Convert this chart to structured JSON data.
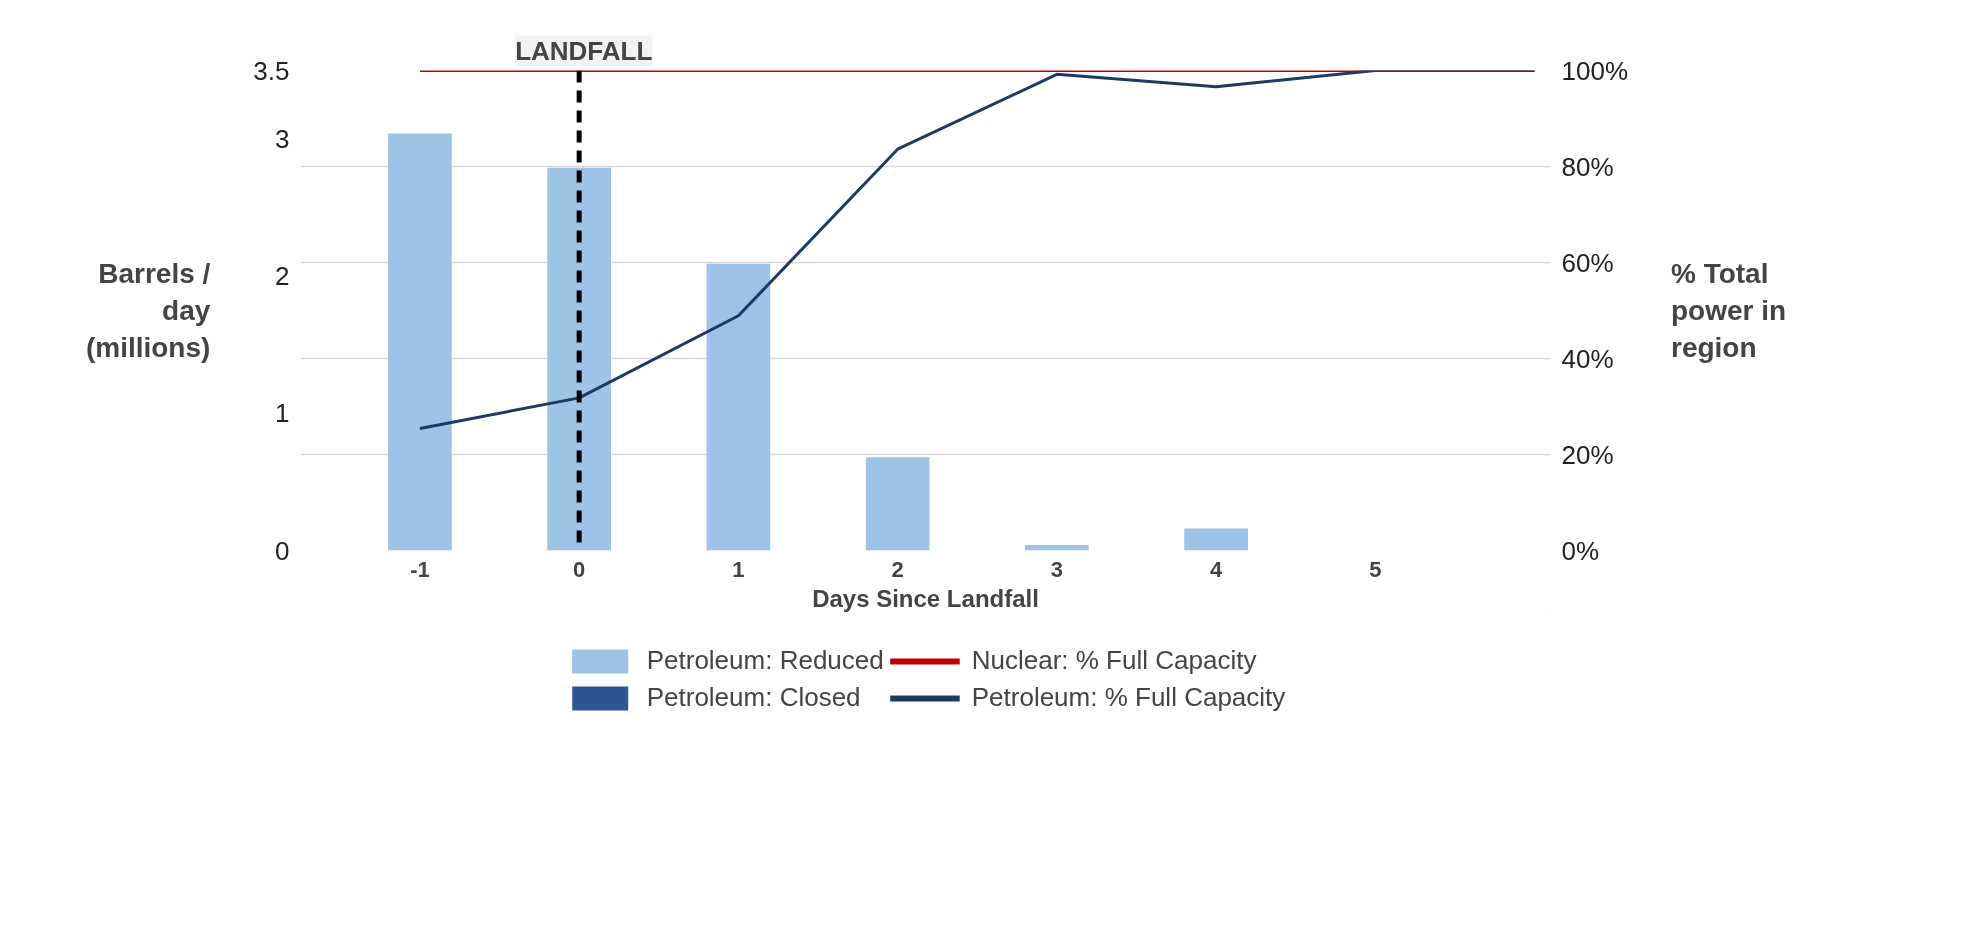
{
  "chart_data": {
    "type": "bar",
    "xlabel": "Days Since Landfall",
    "ylabel": "Barrels / day (millions)",
    "y2label": "% Total power in region",
    "categories": [
      "-1",
      "0",
      "1",
      "2",
      "3",
      "4",
      "5",
      null
    ],
    "series": [
      {
        "name": "Petroleum: Reduced",
        "color": "#9dc3e6",
        "values": [
          3.04,
          2.79,
          2.09,
          0.68,
          0.04,
          0.16,
          0,
          null
        ]
      },
      {
        "name": "Petroleum: Closed",
        "color": "#2f5597",
        "values": [
          0,
          0,
          0,
          0,
          0,
          0,
          0,
          null
        ]
      },
      {
        "name": "Nuclear: % Full Capacity",
        "type": "line",
        "axis": "y2",
        "color": "#c00000",
        "values": [
          100,
          100,
          100,
          100,
          100,
          100,
          100,
          100
        ]
      },
      {
        "name": "Petroleum: % Full Capacity",
        "type": "line",
        "axis": "y2",
        "color": "#203864",
        "values": [
          25.4,
          31.8,
          48.9,
          83.6,
          99.2,
          96.6,
          100,
          100
        ]
      }
    ],
    "ylim": [
      0,
      3.5
    ],
    "yticks": [
      0,
      1,
      2,
      3,
      3.5
    ],
    "y2lim": [
      0,
      100
    ],
    "y2ticks": [
      {
        "value": 0,
        "label": "0%"
      },
      {
        "value": 20,
        "label": "20%"
      },
      {
        "value": 40,
        "label": "40%"
      },
      {
        "value": 60,
        "label": "60%"
      },
      {
        "value": 80,
        "label": "80%"
      },
      {
        "value": 100,
        "label": "100%"
      }
    ],
    "grid": true,
    "legend": "bottom",
    "ref_lines": [
      {
        "axis": "x",
        "value": "0",
        "label": "LANDFALL",
        "color": "#000000",
        "line_style": "dashed"
      }
    ]
  }
}
